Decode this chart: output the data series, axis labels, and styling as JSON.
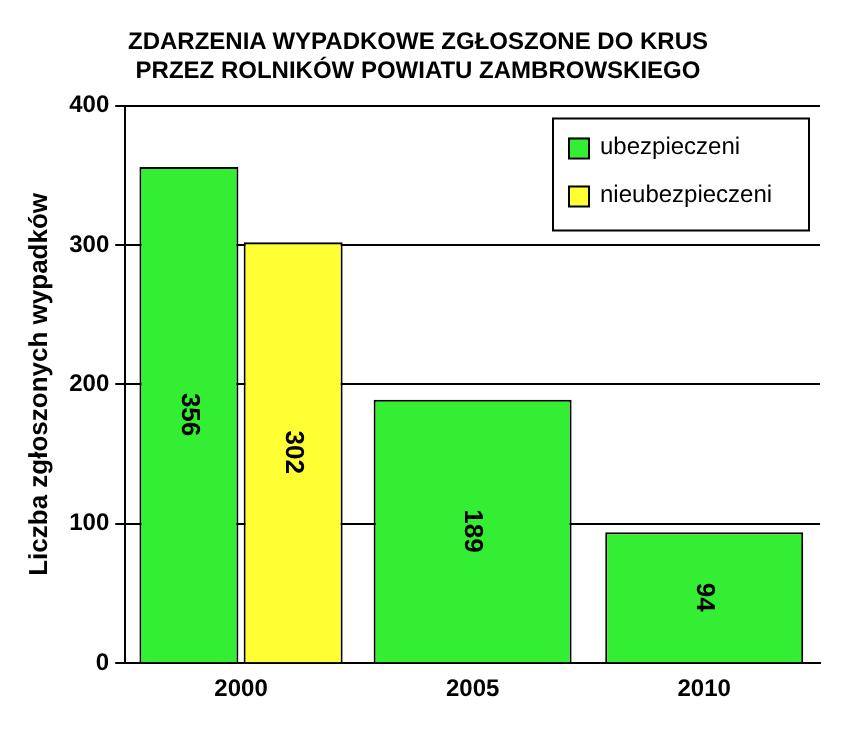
{
  "chart_data": {
    "type": "bar",
    "title": "ZDARZENIA WYPADKOWE ZGŁOSZONE DO KRUS\nPRZEZ ROLNIKÓW POWIATU ZAMBROWSKIEGO",
    "ylabel": "Liczba zgłoszonych wypadków",
    "categories": [
      "2000",
      "2005",
      "2010"
    ],
    "series": [
      {
        "name": "ubezpieczeni",
        "color": "#33ee33",
        "values": [
          356,
          189,
          94
        ]
      },
      {
        "name": "nieubezpieczeni",
        "color": "#ffff33",
        "values": [
          302,
          null,
          null
        ]
      }
    ],
    "ylim": [
      0,
      400
    ],
    "yticks": [
      0,
      100,
      200,
      300,
      400
    ],
    "grid": "y",
    "legend": "top right",
    "data_labels": true
  }
}
